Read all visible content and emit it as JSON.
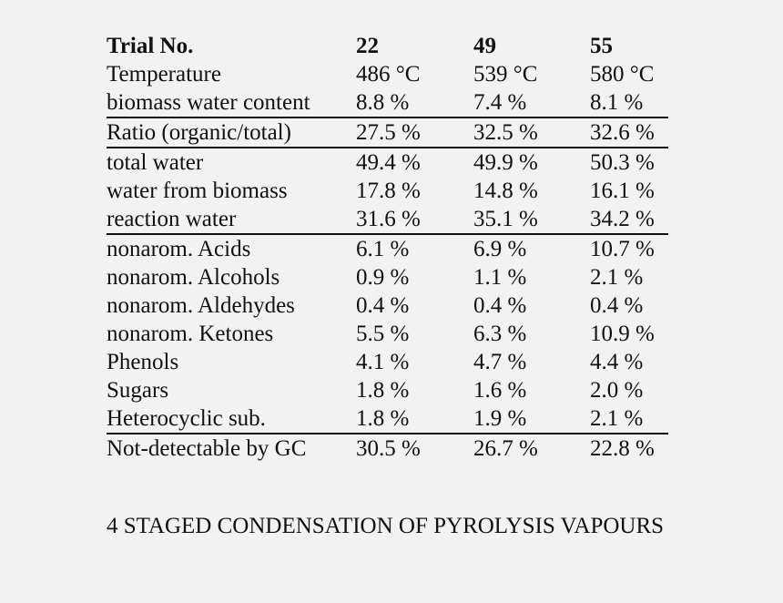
{
  "table": {
    "header": [
      "Trial No.",
      "22",
      "49",
      "55"
    ],
    "rows": [
      {
        "label": "Temperature",
        "values": [
          "486 °C",
          "539 °C",
          "580 °C"
        ]
      },
      {
        "label": "biomass water content",
        "values": [
          "8.8 %",
          "7.4 %",
          "8.1 %"
        ]
      },
      {
        "label": "Ratio (organic/total)",
        "values": [
          "27.5 %",
          "32.5 %",
          "32.6 %"
        ]
      },
      {
        "label": "total water",
        "values": [
          "49.4 %",
          "49.9 %",
          "50.3 %"
        ]
      },
      {
        "label": "water from biomass",
        "values": [
          "17.8 %",
          "14.8 %",
          "16.1 %"
        ]
      },
      {
        "label": "reaction water",
        "values": [
          "31.6 %",
          "35.1 %",
          "34.2 %"
        ]
      },
      {
        "label": "nonarom. Acids",
        "values": [
          "6.1 %",
          "6.9 %",
          "10.7 %"
        ]
      },
      {
        "label": "nonarom. Alcohols",
        "values": [
          "0.9 %",
          "1.1 %",
          "2.1 %"
        ]
      },
      {
        "label": "nonarom. Aldehydes",
        "values": [
          "0.4 %",
          "0.4 %",
          "0.4 %"
        ]
      },
      {
        "label": "nonarom. Ketones",
        "values": [
          "5.5 %",
          "6.3 %",
          "10.9 %"
        ]
      },
      {
        "label": "Phenols",
        "values": [
          "4.1 %",
          "4.7 %",
          "4.4 %"
        ]
      },
      {
        "label": "Sugars",
        "values": [
          "1.8 %",
          "1.6 %",
          "2.0 %"
        ]
      },
      {
        "label": "Heterocyclic sub.",
        "values": [
          "1.8 %",
          "1.9 %",
          "2.1 %"
        ]
      },
      {
        "label": "Not-detectable by GC",
        "values": [
          "30.5 %",
          "26.7 %",
          "22.8 %"
        ]
      }
    ]
  },
  "section_heading": "4 STAGED CONDENSATION OF PYROLYSIS VAPOURS"
}
